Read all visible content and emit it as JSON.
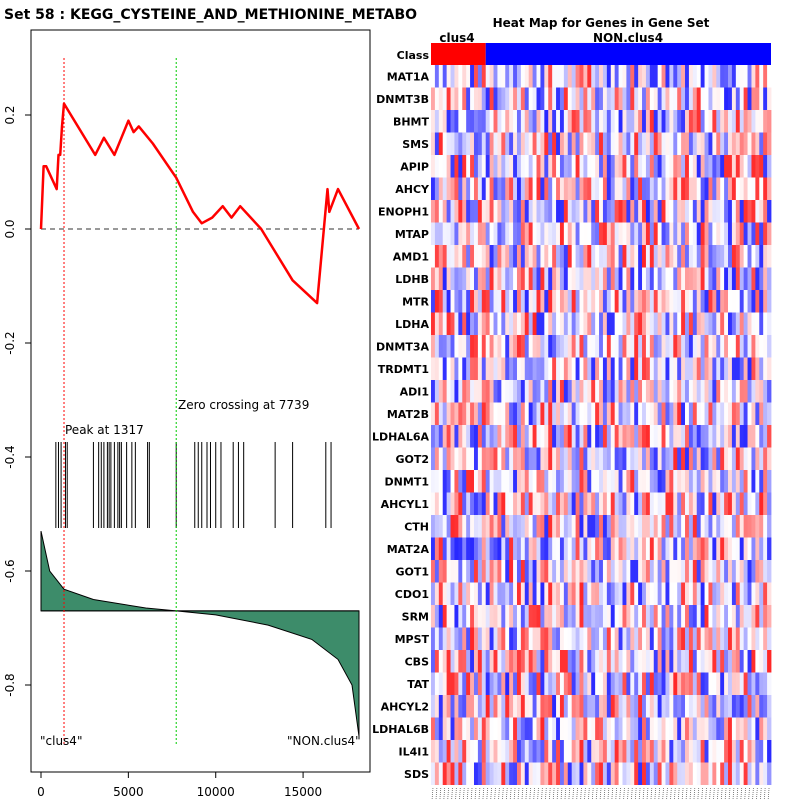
{
  "chart_data": [
    {
      "type": "line",
      "title": "Set  58 : KEGG_CYSTEINE_AND_METHIONINE_METABO",
      "xlabel": "",
      "ylabel": "",
      "xlim": [
        0,
        18200
      ],
      "ylim": [
        -0.9,
        0.3
      ],
      "x_ticks": [
        0,
        5000,
        10000,
        15000
      ],
      "x_tick_labels": [
        "0",
        "5000",
        "10000",
        "15000"
      ],
      "y_ticks": [
        0.2,
        0.0,
        -0.2,
        -0.4,
        -0.6,
        -0.8
      ],
      "y_tick_labels": [
        "0.2",
        "0.0",
        "-0.2",
        "-0.4",
        "-0.6",
        "-0.8"
      ],
      "colors": {
        "es_line": "#ff0000",
        "peak_line": "#ff0000",
        "zero_line": "#00cc00",
        "metric_fill": "#3d8c6a",
        "hit_bar": "#000000"
      },
      "series": [
        {
          "name": "running enrichment score",
          "x": [
            0,
            150,
            300,
            900,
            1000,
            1100,
            1200,
            1317,
            3100,
            3600,
            4200,
            4600,
            5000,
            5300,
            5600,
            6400,
            7739,
            8700,
            9200,
            9800,
            10400,
            10900,
            11400,
            12600,
            14400,
            15800,
            16400,
            16500,
            17000,
            18200
          ],
          "y": [
            0.0,
            0.11,
            0.11,
            0.07,
            0.13,
            0.13,
            0.18,
            0.22,
            0.13,
            0.16,
            0.13,
            0.16,
            0.19,
            0.17,
            0.18,
            0.15,
            0.09,
            0.03,
            0.01,
            0.02,
            0.04,
            0.02,
            0.04,
            0.0,
            -0.09,
            -0.13,
            0.07,
            0.03,
            0.07,
            0.0
          ]
        }
      ],
      "hit_positions": [
        850,
        1000,
        1150,
        1400,
        1500,
        3000,
        3300,
        3450,
        3600,
        3800,
        3900,
        4000,
        4200,
        4400,
        4500,
        4600,
        4900,
        5200,
        5400,
        6100,
        6200,
        7739,
        8800,
        9000,
        9200,
        9500,
        9700,
        10000,
        10300,
        11000,
        11300,
        11600,
        13400,
        14400,
        16300,
        16600
      ],
      "metric_curve": {
        "x": [
          0,
          500,
          1317,
          3000,
          6000,
          7739,
          10000,
          13000,
          15500,
          17000,
          17800,
          18200
        ],
        "y": [
          -0.53,
          -0.6,
          -0.632,
          -0.65,
          -0.665,
          -0.67,
          -0.677,
          -0.695,
          -0.72,
          -0.755,
          -0.8,
          -0.89
        ]
      },
      "baseline": -0.67,
      "peak_x": 1317,
      "zero_crossing_x": 7739,
      "annotations": [
        "Peak at 1317",
        "Zero crossing at 7739",
        "\"clus4\"",
        "\"NON.clus4\""
      ]
    },
    {
      "type": "heatmap",
      "title": "Heat Map for Genes in Gene Set",
      "row_header": "Class",
      "class_labels": [
        "clus4",
        "NON.clus4"
      ],
      "class_colors": [
        "#ff0000",
        "#0000ff"
      ],
      "class_sizes": [
        14,
        73
      ],
      "genes": [
        "MAT1A",
        "DNMT3B",
        "BHMT",
        "SMS",
        "APIP",
        "AHCY",
        "ENOPH1",
        "MTAP",
        "AMD1",
        "LDHB",
        "MTR",
        "LDHA",
        "DNMT3A",
        "TRDMT1",
        "ADI1",
        "MAT2B",
        "LDHAL6A",
        "GOT2",
        "DNMT1",
        "AHCYL1",
        "CTH",
        "MAT2A",
        "GOT1",
        "CDO1",
        "SRM",
        "MPST",
        "CBS",
        "TAT",
        "AHCYL2",
        "LDHAL6B",
        "IL4I1",
        "SDS"
      ],
      "color_scale": {
        "low": "#0000ff",
        "mid": "#ffffff",
        "high": "#ff0000"
      },
      "values_note": "87 samples per gene; expression values are not printed in the figure"
    }
  ]
}
